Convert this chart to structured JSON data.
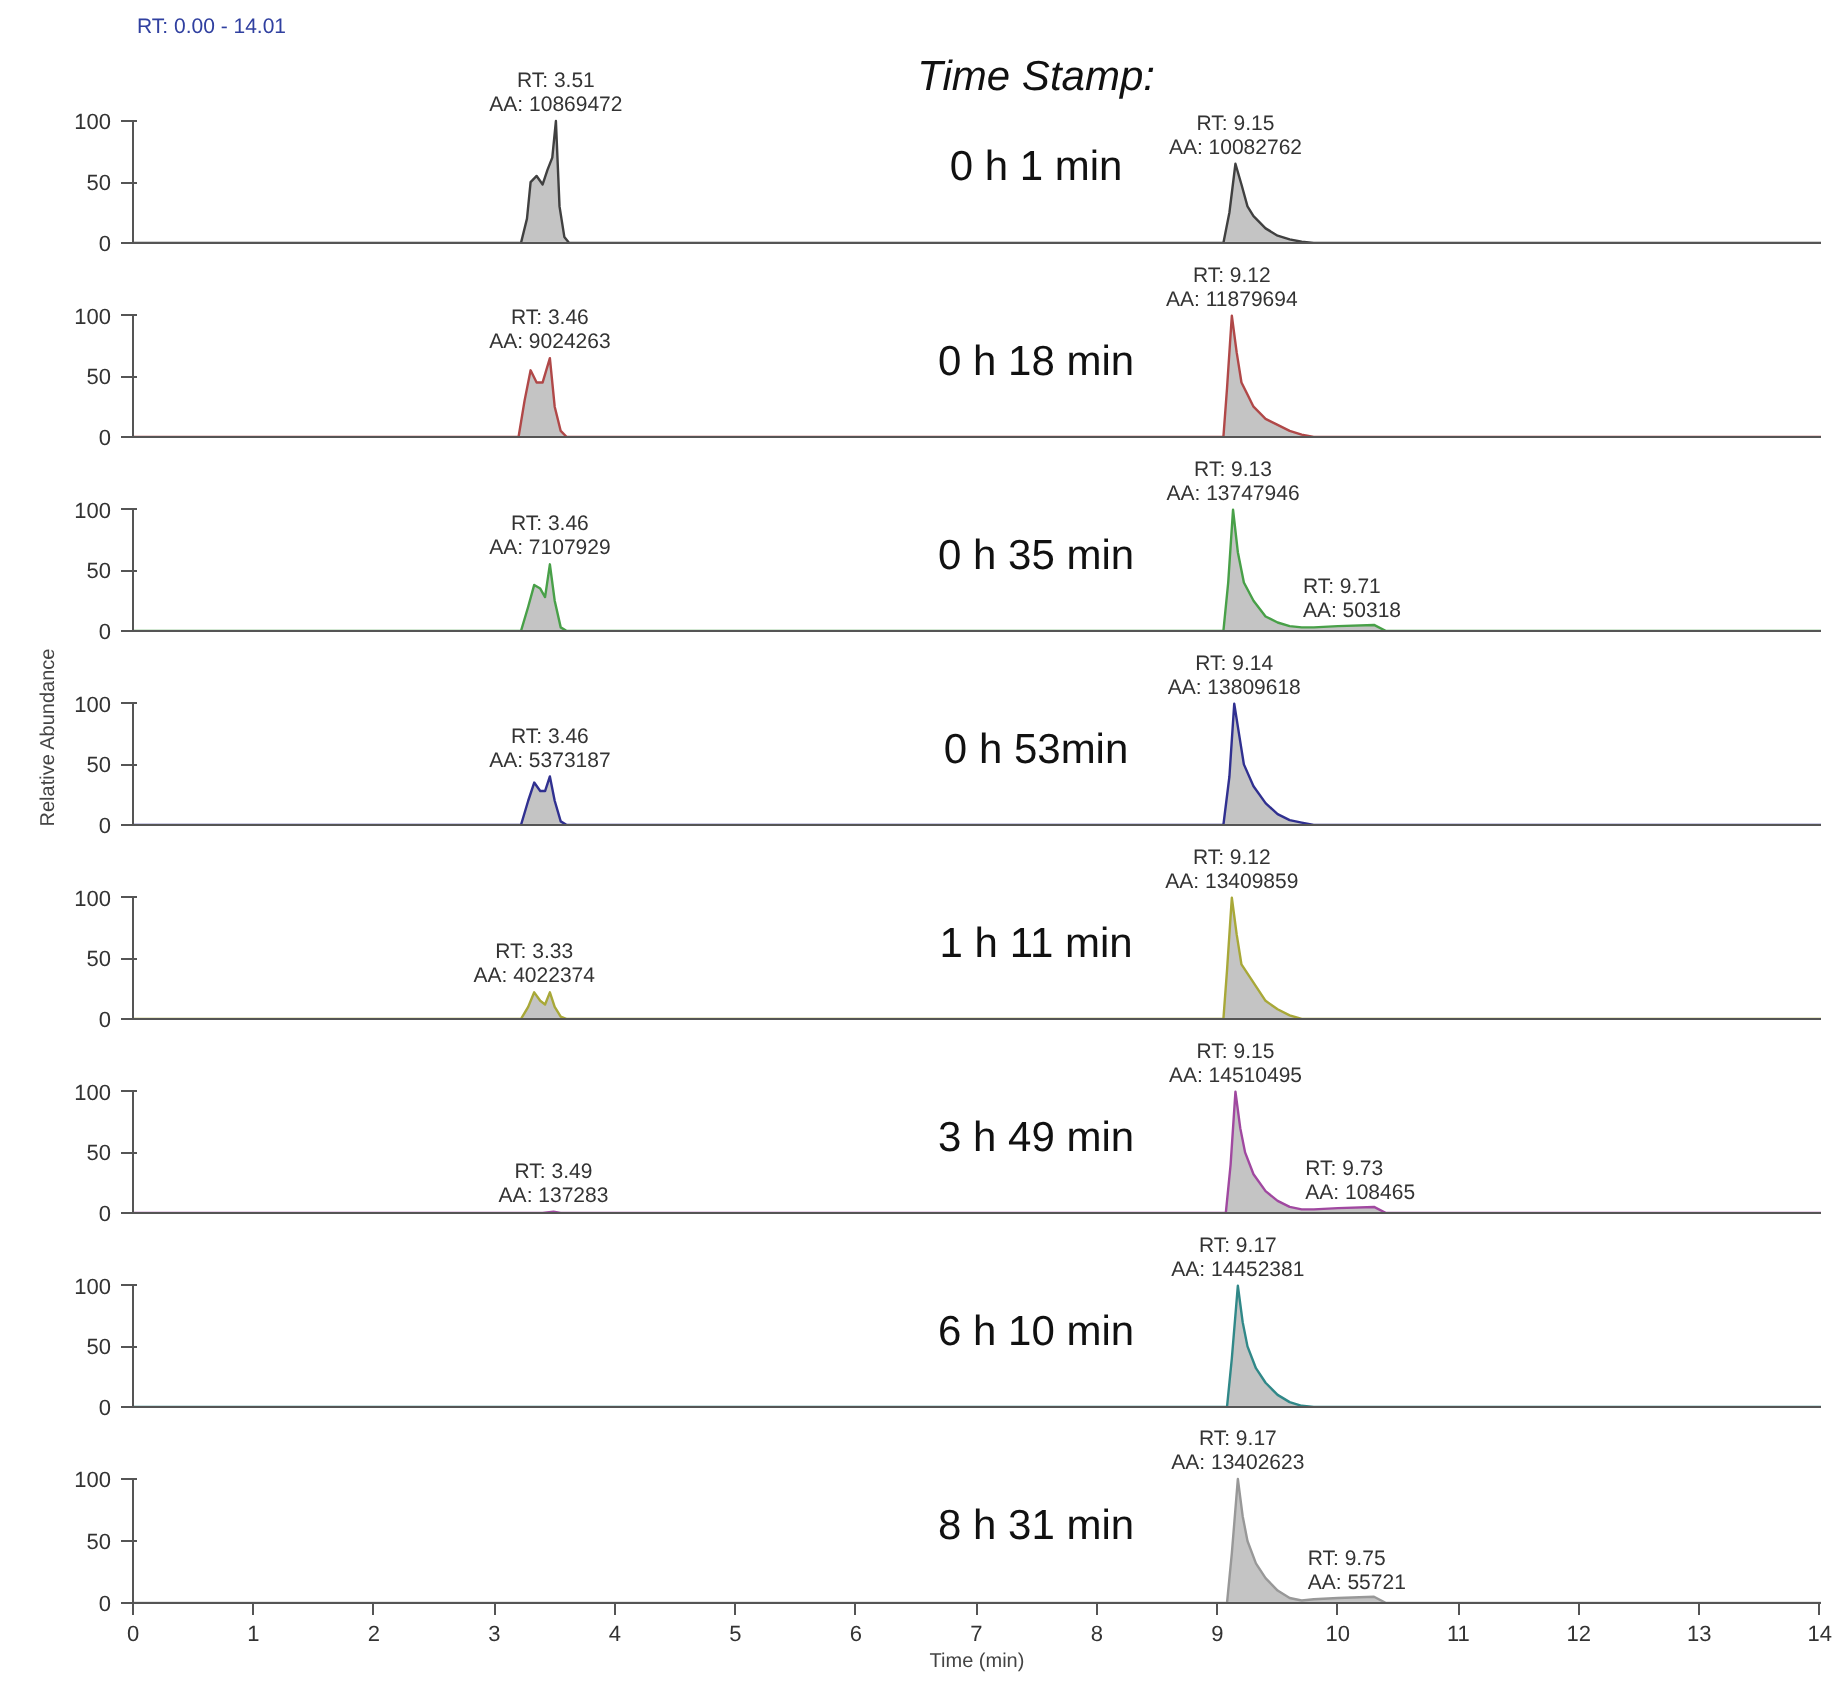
{
  "chart_data": [
    {
      "type": "area",
      "title": "0 h 1 min",
      "xlim": [
        0,
        14.01
      ],
      "ylim": [
        0,
        100
      ],
      "yticks": [
        0,
        50,
        100
      ],
      "xticks": [
        0,
        1,
        2,
        3,
        4,
        5,
        6,
        7,
        8,
        9,
        10,
        11,
        12,
        13,
        14
      ],
      "tick_labels": "y",
      "grid": false,
      "series": [
        {
          "color": "#404040",
          "x": [
            0,
            3.22,
            3.27,
            3.3,
            3.35,
            3.4,
            3.44,
            3.48,
            3.51,
            3.54,
            3.58,
            3.62,
            9.05,
            9.1,
            9.15,
            9.2,
            9.25,
            9.3,
            9.4,
            9.5,
            9.6,
            9.7,
            9.8,
            14.01
          ],
          "values": [
            0,
            0,
            20,
            50,
            55,
            48,
            60,
            70,
            100,
            30,
            5,
            0,
            0,
            25,
            65,
            48,
            30,
            22,
            12,
            6,
            3,
            1,
            0,
            0
          ]
        }
      ],
      "annotations": [
        "RT: 0.00 - 14.01",
        "Time Stamp:",
        {
          "text": "RT: 3.51\nAA: 10869472",
          "x": 3.51,
          "y": 100
        },
        {
          "text": "RT: 9.15\nAA: 10082762",
          "x": 9.15,
          "y": 65
        }
      ]
    },
    {
      "type": "area",
      "title": "0 h 18 min",
      "xlim": [
        0,
        14.01
      ],
      "ylim": [
        0,
        100
      ],
      "yticks": [
        0,
        50,
        100
      ],
      "xticks": [
        0,
        1,
        2,
        3,
        4,
        5,
        6,
        7,
        8,
        9,
        10,
        11,
        12,
        13,
        14
      ],
      "tick_labels": "y",
      "grid": false,
      "series": [
        {
          "color": "#b04848",
          "x": [
            0,
            3.2,
            3.25,
            3.3,
            3.35,
            3.4,
            3.46,
            3.5,
            3.55,
            3.6,
            9.05,
            9.08,
            9.12,
            9.16,
            9.2,
            9.25,
            9.3,
            9.4,
            9.5,
            9.6,
            9.7,
            9.8,
            14.01
          ],
          "values": [
            0,
            0,
            30,
            55,
            45,
            45,
            65,
            25,
            5,
            0,
            0,
            40,
            100,
            70,
            45,
            35,
            25,
            15,
            10,
            5,
            2,
            0,
            0
          ]
        }
      ],
      "annotations": [
        {
          "text": "RT: 3.46\nAA: 9024263",
          "x": 3.46,
          "y": 65
        },
        {
          "text": "RT: 9.12\nAA: 11879694",
          "x": 9.12,
          "y": 100
        }
      ]
    },
    {
      "type": "area",
      "title": "0 h 35 min",
      "xlim": [
        0,
        14.01
      ],
      "ylim": [
        0,
        100
      ],
      "yticks": [
        0,
        50,
        100
      ],
      "xticks": [
        0,
        1,
        2,
        3,
        4,
        5,
        6,
        7,
        8,
        9,
        10,
        11,
        12,
        13,
        14
      ],
      "tick_labels": "y",
      "grid": false,
      "series": [
        {
          "color": "#48a048",
          "x": [
            0,
            3.22,
            3.28,
            3.33,
            3.38,
            3.42,
            3.46,
            3.5,
            3.55,
            3.6,
            9.05,
            9.09,
            9.13,
            9.17,
            9.22,
            9.3,
            9.4,
            9.5,
            9.6,
            9.7,
            9.8,
            10.0,
            10.3,
            10.4,
            14.01
          ],
          "values": [
            0,
            0,
            20,
            38,
            35,
            28,
            55,
            25,
            3,
            0,
            0,
            40,
            100,
            65,
            40,
            25,
            12,
            7,
            4,
            3,
            3,
            4,
            5,
            0,
            0
          ]
        }
      ],
      "annotations": [
        {
          "text": "RT: 3.46\nAA: 7107929",
          "x": 3.46,
          "y": 55
        },
        {
          "text": "RT: 9.13\nAA: 13747946",
          "x": 9.13,
          "y": 100
        },
        {
          "text": "RT: 9.71\nAA: 50318",
          "x": 9.71,
          "y": 3
        }
      ]
    },
    {
      "type": "area",
      "title": "0 h 53min",
      "ylabel": "Relative Abundance",
      "xlim": [
        0,
        14.01
      ],
      "ylim": [
        0,
        100
      ],
      "yticks": [
        0,
        50,
        100
      ],
      "xticks": [
        0,
        1,
        2,
        3,
        4,
        5,
        6,
        7,
        8,
        9,
        10,
        11,
        12,
        13,
        14
      ],
      "tick_labels": "y",
      "grid": false,
      "series": [
        {
          "color": "#303090",
          "x": [
            0,
            3.22,
            3.28,
            3.33,
            3.38,
            3.42,
            3.46,
            3.5,
            3.55,
            3.6,
            9.05,
            9.1,
            9.14,
            9.18,
            9.22,
            9.3,
            9.4,
            9.5,
            9.6,
            9.7,
            9.8,
            14.01
          ],
          "values": [
            0,
            0,
            20,
            35,
            28,
            28,
            40,
            20,
            3,
            0,
            0,
            40,
            100,
            75,
            50,
            32,
            18,
            9,
            4,
            2,
            0,
            0
          ]
        }
      ],
      "annotations": [
        {
          "text": "RT: 3.46\nAA: 5373187",
          "x": 3.46,
          "y": 40
        },
        {
          "text": "RT: 9.14\nAA: 13809618",
          "x": 9.14,
          "y": 100
        }
      ]
    },
    {
      "type": "area",
      "title": "1 h 11 min",
      "xlim": [
        0,
        14.01
      ],
      "ylim": [
        0,
        100
      ],
      "yticks": [
        0,
        50,
        100
      ],
      "xticks": [
        0,
        1,
        2,
        3,
        4,
        5,
        6,
        7,
        8,
        9,
        10,
        11,
        12,
        13,
        14
      ],
      "tick_labels": "y",
      "grid": false,
      "series": [
        {
          "color": "#a8a838",
          "x": [
            0,
            3.22,
            3.28,
            3.33,
            3.38,
            3.42,
            3.46,
            3.5,
            3.55,
            3.6,
            9.05,
            9.08,
            9.12,
            9.16,
            9.2,
            9.3,
            9.4,
            9.5,
            9.6,
            9.7,
            14.01
          ],
          "values": [
            0,
            0,
            10,
            22,
            15,
            12,
            22,
            10,
            2,
            0,
            0,
            40,
            100,
            70,
            45,
            30,
            15,
            8,
            3,
            0,
            0
          ]
        }
      ],
      "annotations": [
        {
          "text": "RT: 3.33\nAA: 4022374",
          "x": 3.33,
          "y": 22
        },
        {
          "text": "RT: 9.12\nAA: 13409859",
          "x": 9.12,
          "y": 100
        }
      ]
    },
    {
      "type": "area",
      "title": "3 h 49 min",
      "xlim": [
        0,
        14.01
      ],
      "ylim": [
        0,
        100
      ],
      "yticks": [
        0,
        50,
        100
      ],
      "xticks": [
        0,
        1,
        2,
        3,
        4,
        5,
        6,
        7,
        8,
        9,
        10,
        11,
        12,
        13,
        14
      ],
      "tick_labels": "y",
      "grid": false,
      "series": [
        {
          "color": "#a048a0",
          "x": [
            0,
            3.4,
            3.49,
            3.55,
            9.07,
            9.11,
            9.15,
            9.19,
            9.23,
            9.3,
            9.4,
            9.5,
            9.6,
            9.7,
            9.8,
            10.0,
            10.3,
            10.4,
            14.01
          ],
          "values": [
            0,
            0,
            1,
            0,
            0,
            40,
            100,
            70,
            50,
            32,
            18,
            10,
            5,
            3,
            3,
            4,
            5,
            0,
            0
          ]
        }
      ],
      "annotations": [
        {
          "text": "RT: 3.49\nAA: 137283",
          "x": 3.49,
          "y": 1
        },
        {
          "text": "RT: 9.15\nAA: 14510495",
          "x": 9.15,
          "y": 100
        },
        {
          "text": "RT: 9.73\nAA: 108465",
          "x": 9.73,
          "y": 3
        }
      ]
    },
    {
      "type": "area",
      "title": "6 h 10 min",
      "xlim": [
        0,
        14.01
      ],
      "ylim": [
        0,
        100
      ],
      "yticks": [
        0,
        50,
        100
      ],
      "xticks": [
        0,
        1,
        2,
        3,
        4,
        5,
        6,
        7,
        8,
        9,
        10,
        11,
        12,
        13,
        14
      ],
      "tick_labels": "y",
      "grid": false,
      "series": [
        {
          "color": "#308888",
          "x": [
            0,
            9.08,
            9.12,
            9.17,
            9.21,
            9.25,
            9.32,
            9.4,
            9.5,
            9.6,
            9.7,
            9.8,
            14.01
          ],
          "values": [
            0,
            0,
            40,
            100,
            70,
            50,
            32,
            20,
            10,
            4,
            1,
            0,
            0
          ]
        }
      ],
      "annotations": [
        {
          "text": "RT: 9.17\nAA: 14452381",
          "x": 9.17,
          "y": 100
        }
      ]
    },
    {
      "type": "area",
      "title": "8 h 31 min",
      "xlabel": "Time (min)",
      "xlim": [
        0,
        14.01
      ],
      "ylim": [
        0,
        100
      ],
      "yticks": [
        0,
        50,
        100
      ],
      "xticks": [
        0,
        1,
        2,
        3,
        4,
        5,
        6,
        7,
        8,
        9,
        10,
        11,
        12,
        13,
        14
      ],
      "grid": false,
      "series": [
        {
          "color": "#989898",
          "x": [
            0,
            9.08,
            9.12,
            9.17,
            9.21,
            9.25,
            9.32,
            9.4,
            9.5,
            9.6,
            9.7,
            9.8,
            10.0,
            10.3,
            10.4,
            14.01
          ],
          "values": [
            0,
            0,
            40,
            100,
            70,
            50,
            32,
            20,
            10,
            4,
            2,
            3,
            4,
            5,
            0,
            0
          ]
        }
      ],
      "annotations": [
        {
          "text": "RT: 9.17\nAA: 13402623",
          "x": 9.17,
          "y": 100
        },
        {
          "text": "RT: 9.75\nAA: 55721",
          "x": 9.75,
          "y": 3
        }
      ]
    }
  ]
}
